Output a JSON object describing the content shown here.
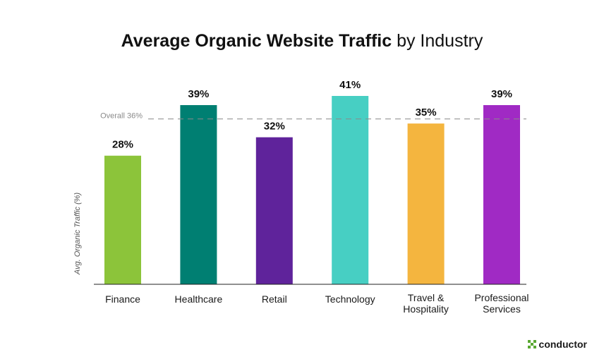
{
  "chart_data": {
    "type": "bar",
    "title": "Average Organic Website Traffic by Industry",
    "title_bold": "Average Organic Website Traffic",
    "title_regular": "by Industry",
    "ylabel": "Avg. Organic Traffic (%)",
    "xlabel": "",
    "categories": [
      [
        "Finance"
      ],
      [
        "Healthcare"
      ],
      [
        "Retail"
      ],
      [
        "Technology"
      ],
      [
        "Travel &",
        "Hospitality"
      ],
      [
        "Professional",
        "Services"
      ]
    ],
    "values": [
      28,
      39,
      32,
      41,
      35,
      39
    ],
    "data_labels": [
      "28%",
      "39%",
      "32%",
      "41%",
      "35%",
      "39%"
    ],
    "colors": [
      "#8cc43a",
      "#007f72",
      "#5f239b",
      "#47cfc3",
      "#f4b53f",
      "#a02ac4"
    ],
    "reference_line": {
      "value": 36,
      "label": "Overall 36%",
      "style": "dashed",
      "color": "#8a8a8a"
    },
    "ylim": [
      0,
      41
    ],
    "grid": false,
    "legend": "none"
  },
  "brand": {
    "name": "conductor",
    "icon": "conductor-logo-icon",
    "color": "#5aa832"
  }
}
